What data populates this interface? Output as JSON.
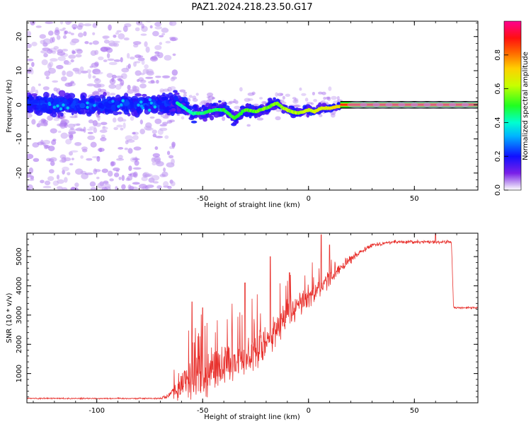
{
  "title": "PAZ1.2024.218.23.50.G17",
  "chart_data": [
    {
      "type": "heatmap",
      "xlabel": "Height of straight line (km)",
      "ylabel": "Frequency (Hz)",
      "xlim": [
        -133,
        80
      ],
      "ylim": [
        -25,
        24.5
      ],
      "x_ticks": [
        -100,
        -50,
        0,
        50
      ],
      "y_ticks": [
        -20,
        -10,
        0,
        10,
        20
      ],
      "colorbar": {
        "label": "Normalized spectral amplitude",
        "ticks": [
          0.0,
          0.2,
          0.4,
          0.6,
          0.8
        ],
        "range": [
          0,
          1
        ],
        "colormap": "rainbow (purple-blue-cyan-green-yellow-red-magenta)"
      },
      "ridge_x": [
        -62,
        -55,
        -50,
        -45,
        -40,
        -35,
        -30,
        -25,
        -20,
        -15,
        -12,
        -8,
        -5,
        -2,
        0,
        3,
        6,
        10,
        14,
        20,
        30,
        40,
        50,
        60,
        70,
        80
      ],
      "ridge_freq": [
        0.5,
        -2.5,
        -2.5,
        -1.5,
        -1.5,
        -4,
        -1.5,
        -2,
        -1,
        0.5,
        -1,
        -2,
        -2.5,
        -2,
        -1.5,
        -2,
        -1,
        -1,
        -0.5,
        0,
        0,
        0,
        0,
        0,
        0,
        0
      ]
    },
    {
      "type": "line",
      "xlabel": "Height of straight line (km)",
      "ylabel": "SNR (10 * v/v)",
      "xlim": [
        -133,
        80
      ],
      "ylim": [
        0,
        5800
      ],
      "x_ticks": [
        -100,
        -50,
        0,
        50
      ],
      "y_ticks": [
        1000,
        2000,
        3000,
        4000,
        5000
      ],
      "line_color": "#e8302c",
      "envelope": {
        "x": [
          -133,
          -70,
          -66,
          -60,
          -56,
          -50,
          -45,
          -40,
          -35,
          -30,
          -25,
          -20,
          -15,
          -10,
          -5,
          0,
          5,
          10,
          15,
          20,
          25,
          30,
          35,
          40,
          50,
          60,
          67.5,
          68.5,
          75,
          80
        ],
        "base": [
          150,
          150,
          250,
          700,
          1000,
          1100,
          1300,
          1400,
          1500,
          1700,
          1900,
          2300,
          2600,
          3000,
          3400,
          3700,
          4000,
          4300,
          4600,
          4900,
          5200,
          5400,
          5450,
          5500,
          5500,
          5500,
          5500,
          3250,
          3250,
          3250
        ],
        "spread": [
          40,
          40,
          200,
          900,
          1200,
          1300,
          1300,
          1300,
          1300,
          1200,
          1200,
          1100,
          1000,
          900,
          800,
          700,
          600,
          500,
          300,
          250,
          150,
          120,
          100,
          100,
          100,
          100,
          100,
          60,
          60,
          60
        ],
        "peaks": [
          [
            -55,
            3450
          ],
          [
            -50,
            3250
          ],
          [
            -30,
            4100
          ],
          [
            -18,
            5000
          ],
          [
            -9,
            4450
          ],
          [
            6,
            5750
          ],
          [
            10,
            5400
          ],
          [
            60,
            5800
          ]
        ]
      }
    }
  ]
}
